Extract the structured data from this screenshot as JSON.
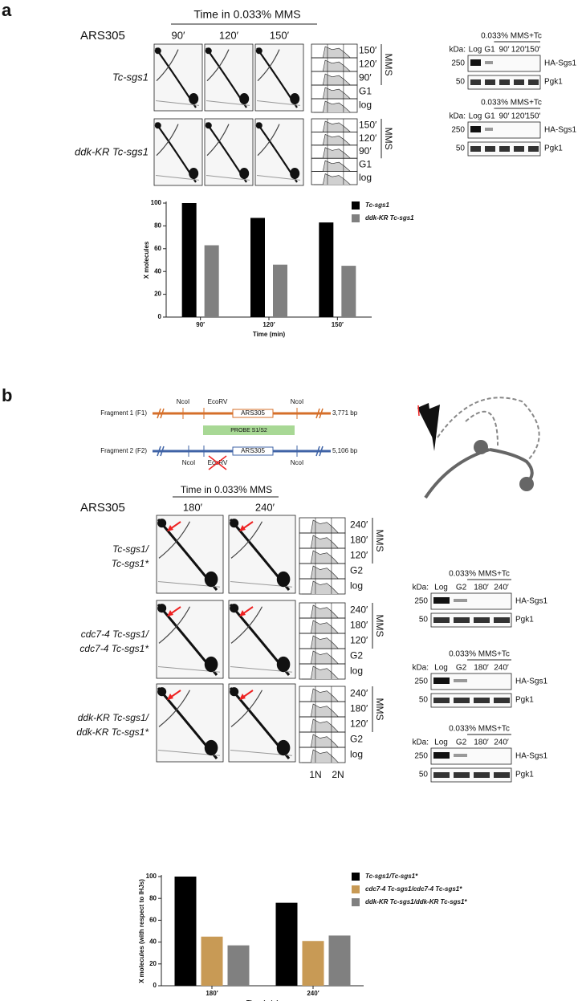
{
  "panel_a": {
    "label": "a",
    "time_header": "Time in 0.033% MMS",
    "locus": "ARS305",
    "timepoints": [
      "90′",
      "120′",
      "150′"
    ],
    "strains": [
      "Tc-sgs1",
      "ddk-KR Tc-sgs1"
    ],
    "facs_labels": [
      "150′",
      "120′",
      "90′",
      "G1",
      "log"
    ],
    "facs_group": "MMS",
    "westerns": [
      {
        "header": "0.033% MMS+Tc",
        "kda": "kDa:",
        "lanes": [
          "Log",
          "G1",
          "90′",
          "120′",
          "150′"
        ],
        "markers": [
          "250",
          "50"
        ],
        "proteins": [
          "HA-Sgs1",
          "Pgk1"
        ]
      },
      {
        "header": "0.033% MMS+Tc",
        "kda": "kDa:",
        "lanes": [
          "Log",
          "G1",
          "90′",
          "120′",
          "150′"
        ],
        "markers": [
          "250",
          "50"
        ],
        "proteins": [
          "HA-Sgs1",
          "Pgk1"
        ]
      }
    ]
  },
  "panel_b": {
    "label": "b",
    "fragments": [
      {
        "name": "Fragment 1 (F1)",
        "size": "3,771 bp",
        "sites": [
          "NcoI",
          "EcoRV",
          "NcoI"
        ],
        "origin": "ARS305"
      },
      {
        "name": "Fragment 2 (F2)",
        "size": "5,106 bp",
        "sites": [
          "NcoI",
          "EcoRV",
          "NcoI"
        ],
        "origin": "ARS305"
      }
    ],
    "probe": "PROBE S1/S2",
    "time_header": "Time in 0.033% MMS",
    "locus": "ARS305",
    "timepoints": [
      "180′",
      "240′"
    ],
    "strains": [
      [
        "Tc-sgs1/",
        "Tc-sgs1*"
      ],
      [
        "cdc7-4 Tc-sgs1/",
        "cdc7-4 Tc-sgs1*"
      ],
      [
        "ddk-KR Tc-sgs1/",
        "ddk-KR Tc-sgs1*"
      ]
    ],
    "facs_labels": [
      "240′",
      "180′",
      "120′",
      "G2",
      "log"
    ],
    "facs_group": "MMS",
    "ploidy": [
      "1N",
      "2N"
    ],
    "westerns": [
      {
        "header": "0.033% MMS+Tc",
        "kda": "kDa:",
        "lanes": [
          "Log",
          "G2",
          "180′",
          "240′"
        ],
        "markers": [
          "250",
          "50"
        ],
        "proteins": [
          "HA-Sgs1",
          "Pgk1"
        ]
      },
      {
        "header": "0.033% MMS+Tc",
        "kda": "kDa:",
        "lanes": [
          "Log",
          "G2",
          "180′",
          "240′"
        ],
        "markers": [
          "250",
          "50"
        ],
        "proteins": [
          "HA-Sgs1",
          "Pgk1"
        ]
      },
      {
        "header": "0.033% MMS+Tc",
        "kda": "kDa:",
        "lanes": [
          "Log",
          "G2",
          "180′",
          "240′"
        ],
        "markers": [
          "250",
          "50"
        ],
        "proteins": [
          "HA-Sgs1",
          "Pgk1"
        ]
      }
    ]
  },
  "chart_data": [
    {
      "type": "bar",
      "categories": [
        "90′",
        "120′",
        "150′"
      ],
      "series": [
        {
          "name": "Tc-sgs1",
          "color": "#000000",
          "values": [
            100,
            87,
            83
          ]
        },
        {
          "name": "ddk-KR Tc-sgs1",
          "color": "#808080",
          "values": [
            63,
            46,
            45
          ]
        }
      ],
      "ylim": [
        0,
        100
      ],
      "yticks": [
        0,
        20,
        40,
        60,
        80,
        100
      ],
      "xlabel": "Time (min)",
      "ylabel": "X molecules",
      "legend": "upper right"
    },
    {
      "type": "bar",
      "categories": [
        "180′",
        "240′"
      ],
      "series": [
        {
          "name": "Tc-sgs1/Tc-sgs1*",
          "color": "#000000",
          "values": [
            100,
            76
          ]
        },
        {
          "name": "cdc7-4 Tc-sgs1/cdc7-4 Tc-sgs1*",
          "color": "#c89a55",
          "values": [
            45,
            41
          ]
        },
        {
          "name": "ddk-KR Tc-sgs1/ddk-KR Tc-sgs1*",
          "color": "#808080",
          "values": [
            37,
            46
          ]
        }
      ],
      "ylim": [
        0,
        100
      ],
      "yticks": [
        0,
        20,
        40,
        60,
        80,
        100
      ],
      "xlabel": "Time (min)",
      "ylabel": "X molecules (with respect to IHJs)",
      "legend": "upper right"
    }
  ]
}
